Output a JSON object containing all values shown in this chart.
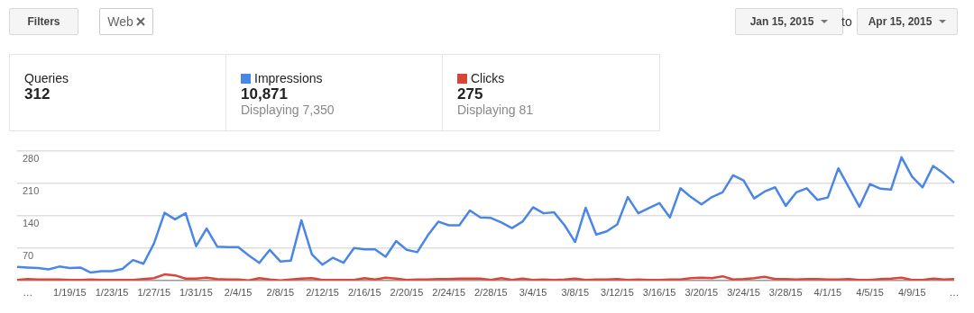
{
  "chart_data": {
    "type": "line",
    "categories": [
      null,
      "…",
      null,
      null,
      null,
      "1/19/15",
      null,
      null,
      null,
      "1/23/15",
      null,
      null,
      null,
      "1/27/15",
      null,
      null,
      null,
      "1/31/15",
      null,
      null,
      null,
      "2/4/15",
      null,
      null,
      null,
      "2/8/15",
      null,
      null,
      null,
      "2/12/15",
      null,
      null,
      null,
      "2/16/15",
      null,
      null,
      null,
      "2/20/15",
      null,
      null,
      null,
      "2/24/15",
      null,
      null,
      null,
      "2/28/15",
      null,
      null,
      null,
      "3/4/15",
      null,
      null,
      null,
      "3/8/15",
      null,
      null,
      null,
      "3/12/15",
      null,
      null,
      null,
      "3/16/15",
      null,
      null,
      null,
      "3/20/15",
      null,
      null,
      null,
      "3/24/15",
      null,
      null,
      null,
      "3/28/15",
      null,
      null,
      null,
      "4/1/15",
      null,
      null,
      null,
      "4/5/15",
      null,
      null,
      null,
      "4/9/15",
      null,
      null,
      null,
      "…"
    ],
    "series": [
      {
        "name": "Impressions",
        "color": "#4a86e8",
        "values": [
          29,
          28,
          27,
          24,
          30,
          27,
          28,
          17,
          20,
          20,
          25,
          44,
          36,
          80,
          146,
          132,
          145,
          74,
          112,
          73,
          72,
          72,
          54,
          38,
          66,
          41,
          43,
          130,
          56,
          34,
          49,
          38,
          70,
          67,
          67,
          51,
          85,
          66,
          61,
          97,
          127,
          119,
          119,
          151,
          136,
          135,
          125,
          113,
          127,
          158,
          145,
          147,
          119,
          83,
          157,
          99,
          106,
          121,
          180,
          145,
          156,
          167,
          136,
          199,
          180,
          164,
          180,
          190,
          227,
          216,
          177,
          192,
          201,
          161,
          190,
          199,
          174,
          179,
          242,
          201,
          159,
          208,
          198,
          196,
          266,
          224,
          201,
          247,
          231,
          211
        ]
      },
      {
        "name": "Clicks",
        "color": "#dc4437",
        "values": [
          1,
          3,
          2,
          2,
          2,
          1,
          1,
          2,
          1,
          1,
          1,
          1,
          3,
          5,
          13,
          11,
          4,
          4,
          6,
          3,
          2,
          2,
          0,
          5,
          2,
          0,
          2,
          4,
          5,
          1,
          1,
          1,
          1,
          5,
          2,
          6,
          4,
          1,
          2,
          2,
          3,
          3,
          4,
          4,
          4,
          1,
          5,
          1,
          4,
          1,
          2,
          1,
          2,
          4,
          1,
          2,
          2,
          3,
          1,
          2,
          1,
          1,
          2,
          2,
          5,
          6,
          5,
          9,
          2,
          3,
          5,
          8,
          3,
          3,
          2,
          3,
          3,
          2,
          2,
          3,
          1,
          1,
          3,
          4,
          6,
          1,
          1,
          4,
          2,
          3
        ]
      }
    ],
    "ylim": [
      0,
      280
    ],
    "yticks": [
      {
        "value": 0,
        "label": null
      },
      70,
      140,
      210,
      280
    ],
    "grid": "y",
    "legend": "top left",
    "marker": "none",
    "line_style": "solid",
    "annotations": [
      "Filters",
      "Web",
      "Jan 15, 2015",
      "to",
      "Apr 15, 2015",
      "Queries",
      "312",
      "10,871",
      "Displaying 7,350",
      "275",
      "Displaying 81"
    ]
  }
}
